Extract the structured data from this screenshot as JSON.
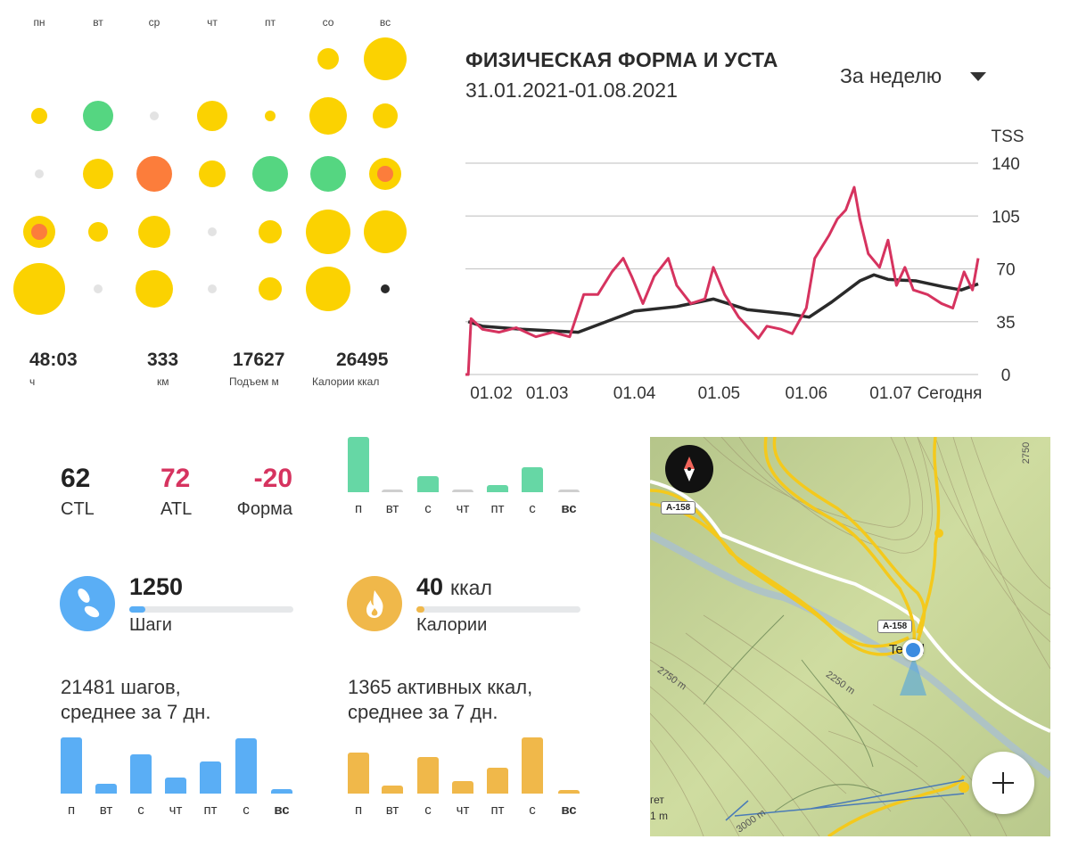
{
  "calendar": {
    "days": [
      "пн",
      "вт",
      "ср",
      "чт",
      "пт",
      "со",
      "вс"
    ],
    "colors": {
      "yellow": "#fbd201",
      "green": "#55d681",
      "orange": "#fc7d3b",
      "gray": "#e3e3e3",
      "black": "#2a2a2a"
    },
    "rows": [
      [
        null,
        null,
        null,
        null,
        null,
        {
          "size": 12,
          "color": "yellow"
        },
        {
          "size": 24,
          "color": "yellow"
        }
      ],
      [
        {
          "size": 9,
          "color": "yellow"
        },
        {
          "size": 17,
          "color": "green"
        },
        {
          "size": 5,
          "color": "gray"
        },
        {
          "size": 17,
          "color": "yellow"
        },
        {
          "size": 6,
          "color": "yellow"
        },
        {
          "size": 21,
          "color": "yellow"
        },
        {
          "size": 14,
          "color": "yellow"
        }
      ],
      [
        {
          "size": 5,
          "color": "gray"
        },
        {
          "size": 17,
          "color": "yellow"
        },
        {
          "size": 20,
          "color": "orange"
        },
        {
          "size": 15,
          "color": "yellow"
        },
        {
          "size": 20,
          "color": "green"
        },
        {
          "size": 20,
          "color": "green"
        },
        {
          "size": 18,
          "color": "yellow",
          "inner": 9
        }
      ],
      [
        {
          "size": 18,
          "color": "yellow",
          "inner": 9
        },
        {
          "size": 11,
          "color": "yellow"
        },
        {
          "size": 18,
          "color": "yellow"
        },
        {
          "size": 5,
          "color": "gray"
        },
        {
          "size": 13,
          "color": "yellow"
        },
        {
          "size": 25,
          "color": "yellow"
        },
        {
          "size": 24,
          "color": "yellow"
        }
      ],
      [
        {
          "size": 29,
          "color": "yellow"
        },
        {
          "size": 5,
          "color": "gray"
        },
        {
          "size": 21,
          "color": "yellow"
        },
        {
          "size": 5,
          "color": "gray"
        },
        {
          "size": 13,
          "color": "yellow"
        },
        {
          "size": 25,
          "color": "yellow"
        },
        {
          "size": 5,
          "color": "black"
        }
      ]
    ],
    "totals": [
      {
        "value": "48:03",
        "label": "ч"
      },
      {
        "value": "333",
        "label": "км"
      },
      {
        "value": "17627",
        "label": "Подъем м"
      },
      {
        "value": "26495",
        "label": "Калории ккал"
      }
    ]
  },
  "fitness": {
    "title": "ФИЗИЧЕСКАЯ ФОРМА И УСТА",
    "range": "31.01.2021-01.08.2021",
    "period": "За неделю"
  },
  "chart_data": {
    "type": "line",
    "ylabel": "TSS",
    "ylim": [
      0,
      140
    ],
    "yticks": [
      "140",
      "105",
      "70",
      "35",
      "0"
    ],
    "xticks": [
      {
        "label": "01.02",
        "day": 1
      },
      {
        "label": "01.03",
        "day": 29
      },
      {
        "label": "01.04",
        "day": 60
      },
      {
        "label": "01.05",
        "day": 90
      },
      {
        "label": "01.06",
        "day": 121
      },
      {
        "label": "01.07",
        "day": 151
      },
      {
        "label": "Сегодня",
        "day": 172
      }
    ],
    "xlim_days": [
      0,
      182
    ],
    "series": [
      {
        "name": "ATL",
        "color": "#d6335f",
        "points": [
          [
            0,
            0
          ],
          [
            1,
            0
          ],
          [
            2,
            37
          ],
          [
            6,
            30
          ],
          [
            12,
            28
          ],
          [
            18,
            31
          ],
          [
            25,
            25
          ],
          [
            31,
            28
          ],
          [
            37,
            25
          ],
          [
            42,
            53
          ],
          [
            47,
            53
          ],
          [
            52,
            68
          ],
          [
            56,
            77
          ],
          [
            59,
            65
          ],
          [
            63,
            47
          ],
          [
            67,
            65
          ],
          [
            72,
            77
          ],
          [
            75,
            59
          ],
          [
            80,
            47
          ],
          [
            85,
            50
          ],
          [
            88,
            71
          ],
          [
            92,
            53
          ],
          [
            97,
            38
          ],
          [
            104,
            24
          ],
          [
            107,
            32
          ],
          [
            112,
            30
          ],
          [
            116,
            27
          ],
          [
            121,
            44
          ],
          [
            124,
            77
          ],
          [
            129,
            92
          ],
          [
            132,
            103
          ],
          [
            135,
            109
          ],
          [
            138,
            124
          ],
          [
            140,
            103
          ],
          [
            143,
            80
          ],
          [
            147,
            71
          ],
          [
            150,
            89
          ],
          [
            153,
            59
          ],
          [
            156,
            71
          ],
          [
            159,
            56
          ],
          [
            164,
            53
          ],
          [
            169,
            47
          ],
          [
            173,
            44
          ],
          [
            177,
            68
          ],
          [
            180,
            56
          ],
          [
            182,
            77
          ]
        ]
      },
      {
        "name": "CTL",
        "color": "#2a2a2a",
        "points": [
          [
            1,
            35
          ],
          [
            6,
            32
          ],
          [
            20,
            30
          ],
          [
            40,
            28
          ],
          [
            50,
            35
          ],
          [
            60,
            42
          ],
          [
            75,
            45
          ],
          [
            88,
            50
          ],
          [
            100,
            43
          ],
          [
            115,
            40
          ],
          [
            122,
            38
          ],
          [
            130,
            48
          ],
          [
            140,
            62
          ],
          [
            145,
            66
          ],
          [
            150,
            63
          ],
          [
            160,
            62
          ],
          [
            170,
            58
          ],
          [
            176,
            56
          ],
          [
            182,
            60
          ]
        ]
      }
    ]
  },
  "load": {
    "ctl": {
      "value": "62",
      "label": "CTL",
      "color": "#2a2a2a"
    },
    "atl": {
      "value": "72",
      "label": "ATL",
      "color": "#d6335f"
    },
    "form": {
      "value": "-20",
      "label": "Форма",
      "color": "#d6335f"
    },
    "week_days": [
      "п",
      "вт",
      "с",
      "чт",
      "пт",
      "с",
      "вс"
    ],
    "bars": [
      62,
      0,
      18,
      0,
      8,
      28,
      0
    ],
    "color": "#66d7a5"
  },
  "steps": {
    "value": "1250",
    "label": "Шаги",
    "progress": 0.1,
    "color": "#5aaef5",
    "avg_line1": "21481 шагов,",
    "avg_line2": "среднее за 7 дн.",
    "week_days": [
      "п",
      "вт",
      "с",
      "чт",
      "пт",
      "с",
      "вс"
    ],
    "bars": [
      63,
      11,
      44,
      18,
      36,
      62,
      5
    ]
  },
  "calories": {
    "value": "40",
    "unit": "ккал",
    "label": "Калории",
    "progress": 0.05,
    "color": "#f0b84a",
    "avg_line1": "1365 активных ккал,",
    "avg_line2": "среднее за 7 дн.",
    "week_days": [
      "п",
      "вт",
      "с",
      "чт",
      "пт",
      "с",
      "вс"
    ],
    "bars": [
      46,
      9,
      41,
      14,
      29,
      63,
      4
    ]
  },
  "map": {
    "road_labels": [
      "A-158",
      "A-158"
    ],
    "place": "Te   ol",
    "contours": [
      "2750 m",
      "2250 m",
      "3000 m",
      "2750"
    ],
    "edge_text": [
      "гет",
      "1 m"
    ]
  }
}
